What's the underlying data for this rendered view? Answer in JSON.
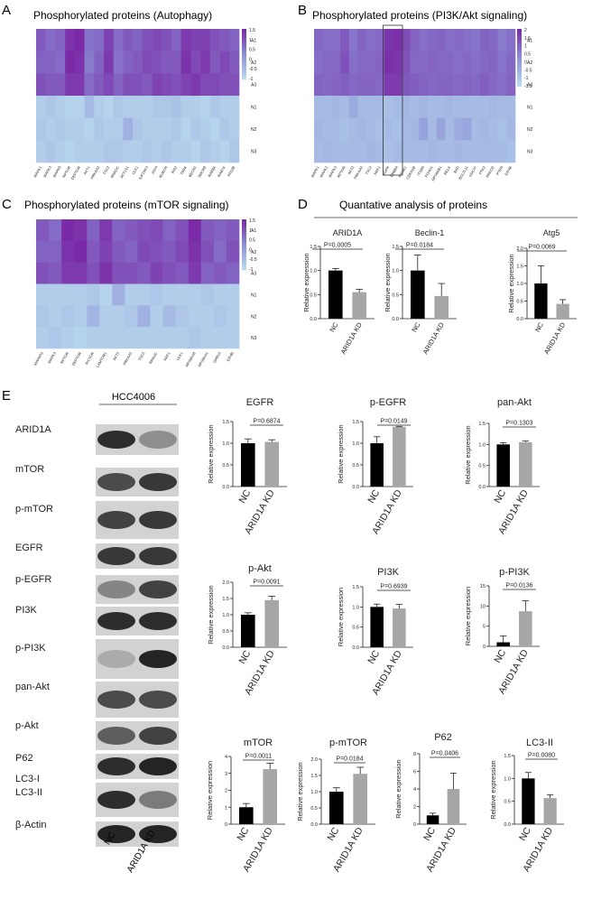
{
  "panels": {
    "A": {
      "letter": "A",
      "title": "Phosphorylated proteins (Autophagy)"
    },
    "B": {
      "letter": "B",
      "title": "Phosphorylated proteins (PI3K/Akt signaling)"
    },
    "C": {
      "letter": "C",
      "title": "Phosphorylated proteins (mTOR signaling)"
    },
    "D": {
      "letter": "D",
      "title": "Quantative analysis of proteins"
    },
    "E": {
      "letter": "E",
      "cell_line": "HCC4006"
    }
  },
  "groups": [
    "NC",
    "ARID1A KD"
  ],
  "heatmap_colors": {
    "low": "#b9d9ee",
    "mid": "#8a8fd6",
    "high": "#7a2aa6"
  },
  "bar_colors": {
    "NC": "#000000",
    "ARID1A KD": "#a6a6a6"
  },
  "western_blot": {
    "labels": [
      "ARID1A",
      "mTOR",
      "p-mTOR",
      "EGFR",
      "p-EGFR",
      "PI3K",
      "p-PI3K",
      "pan-Akt",
      "p-Akt",
      "P62",
      "LC3-I",
      "LC3-II",
      "β-Actin"
    ]
  },
  "chart_data": [
    {
      "id": "A",
      "type": "heatmap",
      "rows": [
        "A1",
        "A2",
        "A3",
        "N1",
        "N2",
        "N3"
      ],
      "columns": [
        "MAPK1",
        "MAPK3",
        "MAPK8",
        "RPTOR",
        "DEPTOR",
        "AKT1",
        "PRKAA2",
        "TSC2",
        "RRAGC",
        "AKT1S1",
        "ULK1",
        "EIF2AK3",
        "ATF4",
        "RUBCN",
        "IRS2",
        "TRPA",
        "BECN1",
        "SMCR8",
        "RAB8A",
        "RAB7A",
        "ATG2B"
      ],
      "colorbar_ticks": [
        "1.5",
        "1",
        "0.5",
        "0",
        "-0.5",
        "-1"
      ],
      "values": [
        [
          0.9,
          0.7,
          0.8,
          1.4,
          1.5,
          0.6,
          0.7,
          1.2,
          0.7,
          0.9,
          0.8,
          1.0,
          1.1,
          1.0,
          0.8,
          1.3,
          1.2,
          1.2,
          1.0,
          0.9,
          0.8
        ],
        [
          0.8,
          0.8,
          0.7,
          1.5,
          1.4,
          0.5,
          0.8,
          1.3,
          0.6,
          0.8,
          0.9,
          1.1,
          1.0,
          0.9,
          0.9,
          1.4,
          1.1,
          1.3,
          0.9,
          1.1,
          0.9
        ],
        [
          1.0,
          0.9,
          0.9,
          1.3,
          1.3,
          0.7,
          0.9,
          1.1,
          0.8,
          1.0,
          1.0,
          0.9,
          1.2,
          1.1,
          1.0,
          1.2,
          1.3,
          1.1,
          1.1,
          1.0,
          1.0
        ],
        [
          -0.8,
          -0.7,
          -0.8,
          -0.9,
          -0.9,
          -0.5,
          -0.8,
          -0.9,
          -0.7,
          -0.8,
          -0.8,
          -0.8,
          -0.7,
          -0.7,
          -0.6,
          -0.8,
          -0.8,
          -0.9,
          -0.7,
          -0.8,
          -0.8
        ],
        [
          -0.7,
          -0.8,
          -0.7,
          -0.8,
          -0.8,
          -0.9,
          -0.7,
          -0.8,
          -0.8,
          -0.3,
          -0.7,
          -0.8,
          -0.8,
          -0.8,
          -0.7,
          -0.9,
          -0.7,
          -0.8,
          -0.9,
          -0.7,
          -0.8
        ],
        [
          -0.8,
          -0.7,
          -0.8,
          -0.9,
          -0.8,
          -0.8,
          -0.8,
          -0.7,
          -0.7,
          -0.8,
          -0.8,
          -0.7,
          -0.8,
          -0.7,
          -0.8,
          -0.8,
          -0.9,
          -0.7,
          -0.8,
          -0.9,
          -0.7
        ]
      ]
    },
    {
      "id": "B",
      "type": "heatmap",
      "rows": [
        "A1",
        "A2",
        "A3",
        "N1",
        "N2",
        "N3"
      ],
      "columns": [
        "MAPK1",
        "MAPK2",
        "MAPK3",
        "RPTOR",
        "AKT2",
        "PRKAA2",
        "TSC2",
        "RAF1",
        "EGFR",
        "ERBB4",
        "PIK3R1",
        "CDKN1B",
        "ITGB5",
        "FOXO1",
        "RPS6KB1",
        "RELA",
        "BAD",
        "BCL2L11",
        "CDC37",
        "PTK2",
        "PRKCD",
        "PTEN",
        "EIF4B"
      ],
      "colorbar_ticks": [
        "2",
        "1.5",
        "1",
        "0.5",
        "0",
        "-0.5",
        "-1",
        "-1.5"
      ],
      "values": [
        [
          0.9,
          0.8,
          0.8,
          1.2,
          0.7,
          1.0,
          0.8,
          0.9,
          1.8,
          1.9,
          1.4,
          1.0,
          0.8,
          0.9,
          1.0,
          0.8,
          0.9,
          0.8,
          0.7,
          1.0,
          0.9,
          0.6,
          0.8
        ],
        [
          0.8,
          0.9,
          0.9,
          1.3,
          0.8,
          0.9,
          0.9,
          1.0,
          1.9,
          1.8,
          1.3,
          0.9,
          0.9,
          1.0,
          0.9,
          0.9,
          0.8,
          0.9,
          0.8,
          0.9,
          1.0,
          0.7,
          0.9
        ],
        [
          1.0,
          0.9,
          1.0,
          1.1,
          0.9,
          1.0,
          1.0,
          0.9,
          1.7,
          1.7,
          1.2,
          1.1,
          1.0,
          0.9,
          1.0,
          1.0,
          0.9,
          1.0,
          0.9,
          1.1,
          0.9,
          0.8,
          1.0
        ],
        [
          -0.8,
          -0.8,
          -0.7,
          -0.8,
          -0.4,
          -0.8,
          -0.8,
          -0.8,
          -0.9,
          -0.8,
          -0.7,
          -0.8,
          -0.7,
          -0.8,
          -0.8,
          -0.7,
          -0.8,
          -0.8,
          -0.8,
          -0.8,
          -0.7,
          -0.8,
          -0.8
        ],
        [
          -0.7,
          -0.8,
          -0.8,
          -0.9,
          -0.8,
          -0.7,
          -0.8,
          -0.9,
          -0.8,
          -0.9,
          -0.8,
          -0.7,
          -0.2,
          -0.8,
          -0.3,
          -0.8,
          -0.4,
          -0.3,
          -0.8,
          -0.7,
          -0.8,
          -0.9,
          -0.7
        ],
        [
          -0.8,
          -0.7,
          -0.8,
          -0.8,
          -0.8,
          -0.8,
          -0.7,
          -0.8,
          -0.9,
          -0.8,
          -0.8,
          -0.8,
          -0.8,
          -0.7,
          -0.8,
          -0.8,
          -0.7,
          -0.8,
          -0.8,
          -0.8,
          -0.8,
          -0.8,
          -0.9
        ]
      ]
    },
    {
      "id": "C",
      "type": "heatmap",
      "rows": [
        "A1",
        "A2",
        "A3",
        "N1",
        "N2",
        "N3"
      ],
      "columns": [
        "MAPKP2",
        "MAPK3",
        "RPTOR",
        "DEPTOR",
        "RICTOR",
        "LAMTOR1",
        "AKT2",
        "PRKAA2",
        "TSC2",
        "RRAGC",
        "RAF1",
        "ULK1",
        "RPS6KA6",
        "RPS6KA1",
        "GRB10",
        "EIF4B"
      ],
      "colorbar_ticks": [
        "1.5",
        "1",
        "0.5",
        "0",
        "-0.5",
        "-1"
      ],
      "values": [
        [
          0.9,
          0.7,
          1.5,
          1.4,
          0.8,
          1.3,
          0.8,
          0.9,
          1.0,
          1.1,
          0.8,
          1.0,
          1.5,
          0.9,
          0.8,
          0.9
        ],
        [
          0.8,
          0.8,
          1.4,
          1.5,
          0.9,
          1.2,
          0.9,
          0.8,
          1.1,
          1.0,
          0.9,
          1.1,
          1.4,
          1.0,
          0.7,
          1.0
        ],
        [
          1.0,
          0.9,
          1.3,
          1.3,
          1.0,
          1.4,
          1.0,
          1.0,
          0.9,
          1.2,
          1.0,
          0.9,
          1.3,
          0.8,
          0.9,
          0.8
        ],
        [
          -0.8,
          -0.8,
          -0.8,
          -0.8,
          -0.7,
          -0.9,
          -0.3,
          -0.8,
          -0.8,
          -0.7,
          -0.8,
          -0.8,
          -0.8,
          -0.7,
          -0.8,
          -0.8
        ],
        [
          -0.7,
          -0.8,
          -0.7,
          -0.8,
          -0.4,
          -0.8,
          -0.8,
          -0.7,
          -0.3,
          -0.8,
          -0.5,
          -0.7,
          -0.8,
          -0.8,
          -0.7,
          -0.8
        ],
        [
          -0.8,
          -0.7,
          -0.8,
          -0.9,
          -0.8,
          -0.8,
          -0.8,
          -0.8,
          -0.8,
          -0.8,
          -0.8,
          -0.8,
          -0.7,
          -0.8,
          -0.8,
          -0.8
        ]
      ]
    },
    {
      "id": "D-ARID1A",
      "type": "bar",
      "title": "ARID1A",
      "ylabel": "Relative expression",
      "categories": [
        "NC",
        "ARID1A KD"
      ],
      "values": [
        1.0,
        0.55
      ],
      "errors": [
        0.04,
        0.06
      ],
      "pvalue": "P=0.0005",
      "ylim": [
        0,
        1.5
      ],
      "yticks": [
        "0.0",
        "0.5",
        "1.0",
        "1.5"
      ]
    },
    {
      "id": "D-Beclin-1",
      "type": "bar",
      "title": "Beclin-1",
      "ylabel": "Relative expression",
      "categories": [
        "NC",
        "ARID1A KD"
      ],
      "values": [
        1.0,
        0.47
      ],
      "errors": [
        0.32,
        0.26
      ],
      "pvalue": "P=0.0184",
      "ylim": [
        0,
        1.5
      ],
      "yticks": [
        "0.0",
        "0.5",
        "1.0",
        "1.5"
      ]
    },
    {
      "id": "D-Atg5",
      "type": "bar",
      "title": "Atg5",
      "ylabel": "Relative expression",
      "categories": [
        "NC",
        "ARID1A KD"
      ],
      "values": [
        1.0,
        0.42
      ],
      "errors": [
        0.5,
        0.12
      ],
      "pvalue": "P=0.0069",
      "ylim": [
        0,
        2.0
      ],
      "yticks": [
        "0.0",
        "0.5",
        "1.0",
        "1.5",
        "2.0"
      ]
    },
    {
      "id": "E-EGFR",
      "type": "bar",
      "title": "EGFR",
      "ylabel": "Relative expression",
      "categories": [
        "NC",
        "ARID1A KD"
      ],
      "values": [
        1.0,
        1.03
      ],
      "errors": [
        0.1,
        0.05
      ],
      "pvalue": "P=0.6874",
      "ylim": [
        0,
        1.5
      ],
      "yticks": [
        "0.0",
        "0.5",
        "1.0",
        "1.5"
      ]
    },
    {
      "id": "E-p-EGFR",
      "type": "bar",
      "title": "p-EGFR",
      "ylabel": "Relative expression",
      "categories": [
        "NC",
        "ARID1A KD"
      ],
      "values": [
        1.0,
        1.38
      ],
      "errors": [
        0.15,
        0.01
      ],
      "pvalue": "P=0.0149",
      "ylim": [
        0,
        1.5
      ],
      "yticks": [
        "0.0",
        "0.5",
        "1.0",
        "1.5"
      ]
    },
    {
      "id": "E-pan-Akt",
      "type": "bar",
      "title": "pan-Akt",
      "ylabel": "Relative expression",
      "categories": [
        "NC",
        "ARID1A KD"
      ],
      "values": [
        1.0,
        1.05
      ],
      "errors": [
        0.04,
        0.03
      ],
      "pvalue": "P=0.1303",
      "ylim": [
        0,
        1.5
      ],
      "yticks": [
        "0.0",
        "0.5",
        "1.0",
        "1.5"
      ]
    },
    {
      "id": "E-p-Akt",
      "type": "bar",
      "title": "p-Akt",
      "ylabel": "Relative expression",
      "categories": [
        "NC",
        "ARID1A KD"
      ],
      "values": [
        1.0,
        1.45
      ],
      "errors": [
        0.06,
        0.12
      ],
      "pvalue": "P=0.0091",
      "ylim": [
        0,
        2.0
      ],
      "yticks": [
        "0.0",
        "0.5",
        "1.0",
        "1.5",
        "2.0"
      ]
    },
    {
      "id": "E-PI3K",
      "type": "bar",
      "title": "PI3K",
      "ylabel": "Relative expression",
      "categories": [
        "NC",
        "ARID1A KD"
      ],
      "values": [
        1.0,
        0.96
      ],
      "errors": [
        0.07,
        0.1
      ],
      "pvalue": "P=0.6939",
      "ylim": [
        0,
        1.5
      ],
      "yticks": [
        "0.0",
        "0.5",
        "1.0",
        "1.5"
      ]
    },
    {
      "id": "E-p-PI3K",
      "type": "bar",
      "title": "p-PI3K",
      "ylabel": "Relative expression",
      "categories": [
        "NC",
        "ARID1A KD"
      ],
      "values": [
        1.0,
        8.7
      ],
      "errors": [
        1.6,
        2.6
      ],
      "pvalue": "P=0.0136",
      "ylim": [
        0,
        15
      ],
      "yticks": [
        "0",
        "5",
        "10",
        "15"
      ]
    },
    {
      "id": "E-mTOR",
      "type": "bar",
      "title": "mTOR",
      "ylabel": "Relative expression",
      "categories": [
        "NC",
        "ARID1A KD"
      ],
      "values": [
        1.0,
        3.25
      ],
      "errors": [
        0.22,
        0.35
      ],
      "pvalue": "P=0.0011",
      "ylim": [
        0,
        4
      ],
      "yticks": [
        "0",
        "1",
        "2",
        "3",
        "4"
      ]
    },
    {
      "id": "E-p-mTOR",
      "type": "bar",
      "title": "p-mTOR",
      "ylabel": "Relative expression",
      "categories": [
        "NC",
        "ARID1A KD"
      ],
      "values": [
        1.0,
        1.55
      ],
      "errors": [
        0.12,
        0.2
      ],
      "pvalue": "P=0.0184",
      "ylim": [
        0,
        2.0
      ],
      "yticks": [
        "0.0",
        "0.5",
        "1.0",
        "1.5",
        "2.0"
      ]
    },
    {
      "id": "E-P62",
      "type": "bar",
      "title": "P62",
      "ylabel": "Relative expression",
      "categories": [
        "NC",
        "ARID1A KD"
      ],
      "values": [
        1.0,
        4.0
      ],
      "errors": [
        0.25,
        1.8
      ],
      "pvalue": "P=0.0406",
      "ylim": [
        0,
        8
      ],
      "yticks": [
        "0",
        "2",
        "4",
        "6",
        "8"
      ]
    },
    {
      "id": "E-LC3-II",
      "type": "bar",
      "title": "LC3-II",
      "ylabel": "Relative expression",
      "categories": [
        "NC",
        "ARID1A KD"
      ],
      "values": [
        1.0,
        0.57
      ],
      "errors": [
        0.13,
        0.07
      ],
      "pvalue": "P=0.0080",
      "ylim": [
        0,
        1.5
      ],
      "yticks": [
        "0.0",
        "0.5",
        "1.0",
        "1.5"
      ]
    }
  ]
}
